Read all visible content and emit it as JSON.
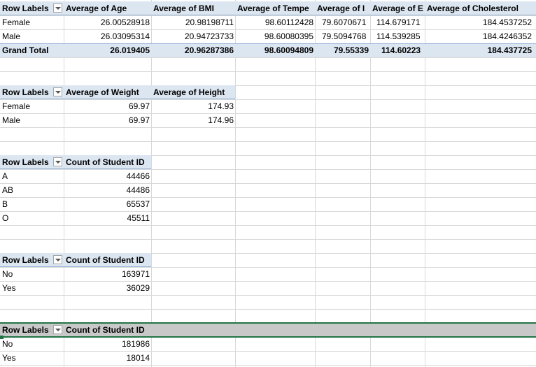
{
  "pivot1": {
    "headers": [
      "Row Labels",
      "Average of Age",
      "Average of BMI",
      "Average of Tempe",
      "Average of I",
      "Average of E",
      "Average of Cholesterol"
    ],
    "rows": [
      {
        "label": "Female",
        "values": [
          "26.00528918",
          "20.98198711",
          "98.60112428",
          "79.6070671",
          "114.679171",
          "184.4537252"
        ]
      },
      {
        "label": "Male",
        "values": [
          "26.03095314",
          "20.94723733",
          "98.60080395",
          "79.5094768",
          "114.539285",
          "184.4246352"
        ]
      }
    ],
    "total": {
      "label": "Grand Total",
      "values": [
        "26.019405",
        "20.96287386",
        "98.60094809",
        "79.55339",
        "114.60223",
        "184.437725"
      ]
    }
  },
  "pivot2": {
    "headers": [
      "Row Labels",
      "Average of Weight",
      "Average of Height"
    ],
    "rows": [
      {
        "label": "Female",
        "values": [
          "69.97",
          "174.93"
        ]
      },
      {
        "label": "Male",
        "values": [
          "69.97",
          "174.96"
        ]
      }
    ]
  },
  "pivot3": {
    "headers": [
      "Row Labels",
      "Count of Student ID"
    ],
    "rows": [
      {
        "label": "A",
        "value": "44466"
      },
      {
        "label": "AB",
        "value": "44486"
      },
      {
        "label": "B",
        "value": "65537"
      },
      {
        "label": "O",
        "value": "45511"
      }
    ]
  },
  "pivot4": {
    "headers": [
      "Row Labels",
      "Count of Student ID"
    ],
    "rows": [
      {
        "label": "No",
        "value": "163971"
      },
      {
        "label": "Yes",
        "value": "36029"
      }
    ]
  },
  "pivot5": {
    "headers": [
      "Row Labels",
      "Count of Student ID"
    ],
    "rows": [
      {
        "label": "No",
        "value": "181986"
      },
      {
        "label": "Yes",
        "value": "18014"
      }
    ]
  },
  "colors": {
    "header_band": "#dce6f1",
    "selected_header": "#c8c8c8",
    "selection": "#217346",
    "gridline": "#d9d9d9"
  }
}
